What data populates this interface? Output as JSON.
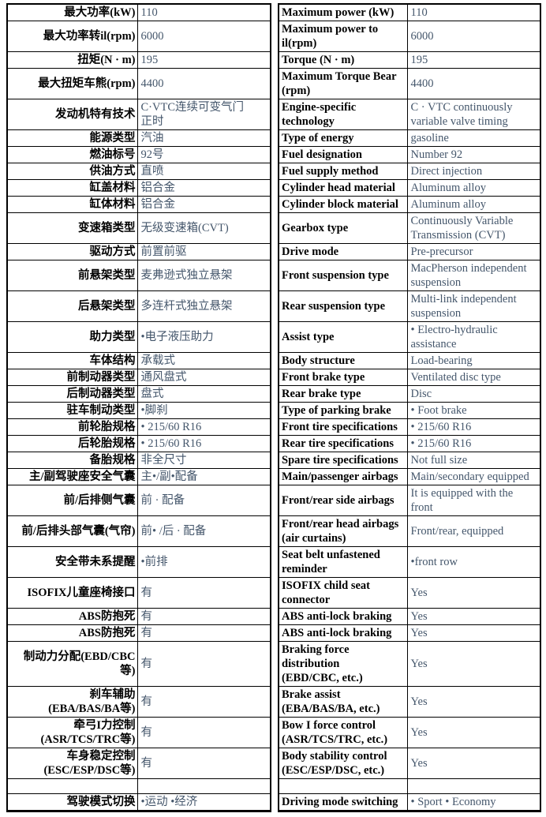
{
  "colors": {
    "border": "#000000",
    "label_text": "#000000",
    "value_text": "#44566b"
  },
  "table": {
    "rows": [
      {
        "zh_label": "最大功率(kW)",
        "zh_value": "110",
        "en_label": "Maximum power (kW)",
        "en_value": "110"
      },
      {
        "zh_label": "最大功率转il(rpm)",
        "zh_value": "6000",
        "en_label": "Maximum power to\nil(rpm)",
        "en_value": "6000"
      },
      {
        "zh_label": "扭矩(N · m)",
        "zh_value": "195",
        "en_label": "Torque (N · m)",
        "en_value": "195"
      },
      {
        "zh_label": "最大扭矩车熊(rpm)",
        "zh_value": "4400",
        "en_label": "Maximum Torque Bear\n(rpm)",
        "en_value": "4400"
      },
      {
        "zh_label": "发动机特有技术",
        "zh_value": "C·VTC连续可变气门\n正时",
        "en_label": "Engine-specific\ntechnology",
        "en_value": "C · VTC continuously\nvariable valve timing"
      },
      {
        "zh_label": "能源类型",
        "zh_value": "汽油",
        "en_label": "Type of energy",
        "en_value": "gasoline"
      },
      {
        "zh_label": "燃油标号",
        "zh_value": "92号",
        "en_label": "Fuel designation",
        "en_value": "Number 92"
      },
      {
        "zh_label": "供油方式",
        "zh_value": "直喷",
        "en_label": "Fuel supply method",
        "en_value": "Direct injection"
      },
      {
        "zh_label": "缸盖材料",
        "zh_value": "铝合金",
        "en_label": "Cylinder head material",
        "en_value": "Aluminum alloy"
      },
      {
        "zh_label": "缸体材料",
        "zh_value": "铝合金",
        "en_label": "Cylinder block material",
        "en_value": "Aluminum alloy"
      },
      {
        "zh_label": "变速箱类型",
        "zh_value": "无级变速箱(CVT)",
        "en_label": "Gearbox type",
        "en_value": "Continuously Variable\nTransmission (CVT)"
      },
      {
        "zh_label": "驱动方式",
        "zh_value": "前置前驱",
        "en_label": "Drive mode",
        "en_value": "Pre-precursor"
      },
      {
        "zh_label": "前悬架类型",
        "zh_value": "麦弗逊式独立悬架",
        "en_label": "Front suspension type",
        "en_value": "MacPherson independent\nsuspension"
      },
      {
        "zh_label": "后悬架类型",
        "zh_value": "多连杆式独立悬架",
        "en_label": "Rear suspension type",
        "en_value": "Multi-link independent\nsuspension"
      },
      {
        "zh_label": "助力类型",
        "zh_value": "•电子液压助力",
        "en_label": "Assist type",
        "en_value": "• Electro-hydraulic\nassistance"
      },
      {
        "zh_label": "车体结构",
        "zh_value": "承载式",
        "en_label": "Body structure",
        "en_value": "Load-bearing"
      },
      {
        "zh_label": "前制动器类型",
        "zh_value": "通风盘式",
        "en_label": "Front brake type",
        "en_value": "Ventilated disc type"
      },
      {
        "zh_label": "后制动器类型",
        "zh_value": "盘式",
        "en_label": "Rear brake type",
        "en_value": "Disc"
      },
      {
        "zh_label": "驻车制动类型",
        "zh_value": "•脚刹",
        "en_label": "Type of parking brake",
        "en_value": "• Foot brake"
      },
      {
        "zh_label": "前轮胎规格",
        "zh_value": "• 215/60 R16",
        "en_label": "Front tire specifications",
        "en_value": "• 215/60 R16"
      },
      {
        "zh_label": "后轮胎规格",
        "zh_value": "• 215/60 R16",
        "en_label": "Rear tire specifications",
        "en_value": "• 215/60 R16"
      },
      {
        "zh_label": "备胎规格",
        "zh_value": "非全尺寸",
        "en_label": "Spare tire specifications",
        "en_value": "Not full size"
      },
      {
        "zh_label": "主/副驾驶座安全气囊",
        "zh_value": "主•/副•配备",
        "en_label": "Main/passenger airbags",
        "en_value": "Main/secondary equipped"
      },
      {
        "zh_label": "前/后排侧气囊",
        "zh_value": "前 · 配备",
        "en_label": "Front/rear side airbags",
        "en_value": "It is equipped with the\nfront"
      },
      {
        "zh_label": "前/后排头部气囊(气帘)",
        "zh_value": "前• /后 · 配备",
        "en_label": "Front/rear head airbags\n(air curtains)",
        "en_value": "Front/rear, equipped"
      },
      {
        "zh_label": "安全带未系提醒",
        "zh_value": "•前排",
        "en_label": "Seat belt unfastened\nreminder",
        "en_value": "•front row"
      },
      {
        "zh_label": "ISOFIX儿童座椅接口",
        "zh_value": "有",
        "en_label": "ISOFIX child seat\nconnector",
        "en_value": "Yes"
      },
      {
        "zh_label": "ABS防抱死",
        "zh_value": "有",
        "en_label": "ABS anti-lock braking",
        "en_value": "Yes"
      },
      {
        "zh_label": "ABS防抱死",
        "zh_value": "有",
        "en_label": "ABS anti-lock braking",
        "en_value": "Yes"
      },
      {
        "zh_label": "制动力分配(EBD/CBC\n等)",
        "zh_value": "有",
        "en_label": "Braking force distribution\n(EBD/CBC, etc.)",
        "en_value": "Yes"
      },
      {
        "zh_label": "刹车辅助\n(EBA/BAS/BA等)",
        "zh_value": "有",
        "en_label": "Brake assist\n(EBA/BAS/BA, etc.)",
        "en_value": "Yes"
      },
      {
        "zh_label": "牵弓I力控制\n(ASR/TCS/TRC等)",
        "zh_value": "有",
        "en_label": "Bow I force control\n(ASR/TCS/TRC, etc.)",
        "en_value": "Yes"
      },
      {
        "zh_label": "车身稳定控制\n(ESC/ESP/DSC等)",
        "zh_value": "有",
        "en_label": "Body stability control\n(ESC/ESP/DSC, etc.)",
        "en_value": "Yes"
      },
      {
        "zh_label": "",
        "zh_value": "",
        "en_label": "",
        "en_value": ""
      },
      {
        "zh_label": "驾驶模式切换",
        "zh_value": "•运动 •经济",
        "en_label": "Driving mode switching",
        "en_value": "• Sport • Economy"
      }
    ]
  }
}
